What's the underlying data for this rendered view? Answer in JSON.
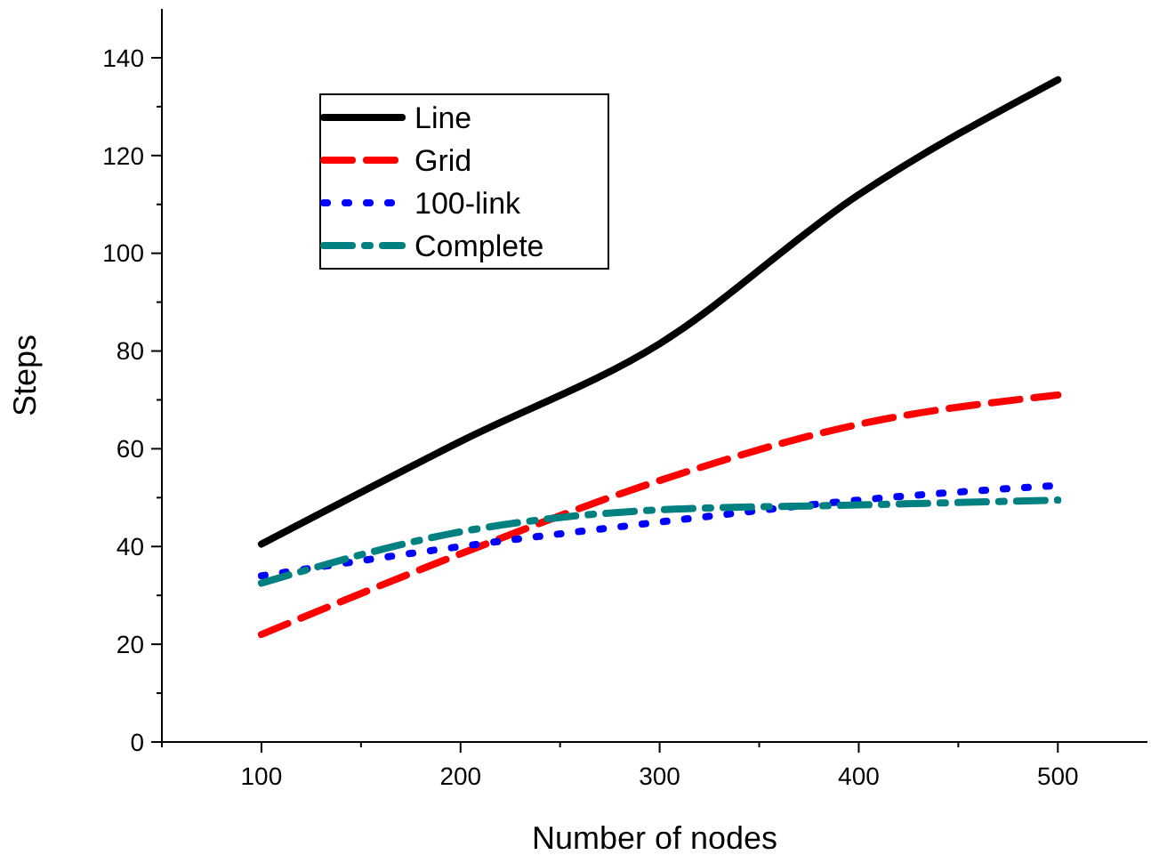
{
  "chart_data": {
    "type": "line",
    "xlabel": "Number of nodes",
    "ylabel": "Steps",
    "x": [
      100,
      200,
      300,
      400,
      500
    ],
    "xlim": [
      50,
      545
    ],
    "xticks": [
      100,
      200,
      300,
      400,
      500
    ],
    "ylim": [
      0,
      150
    ],
    "yticks": [
      0,
      20,
      40,
      60,
      80,
      100,
      120,
      140
    ],
    "legend": "top left",
    "grid": false,
    "marker": "none",
    "series": [
      {
        "name": "Line",
        "color": "#000000",
        "line_style": "solid",
        "values": [
          40.5,
          61.5,
          81.5,
          112,
          135.5
        ]
      },
      {
        "name": "Grid",
        "color": "#ff0000",
        "line_style": "dashed",
        "values": [
          22,
          38.5,
          53.5,
          65,
          71
        ]
      },
      {
        "name": "100-link",
        "color": "#0000ff",
        "line_style": "dotted",
        "values": [
          34,
          40,
          45,
          49.5,
          52.5
        ]
      },
      {
        "name": "Complete",
        "color": "#008080",
        "line_style": "dashdot",
        "values": [
          32.5,
          43,
          47.5,
          48.5,
          49.5
        ]
      }
    ]
  }
}
